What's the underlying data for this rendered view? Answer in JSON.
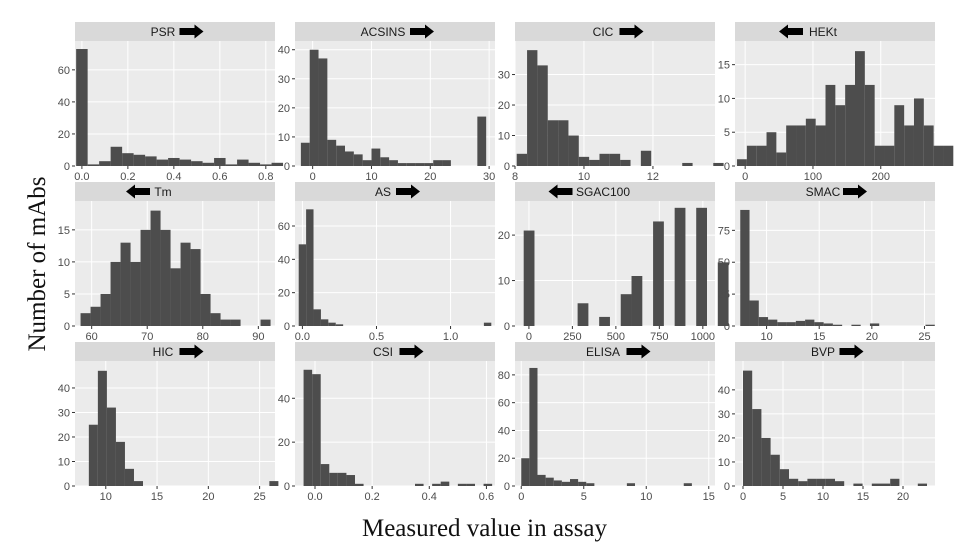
{
  "figure": {
    "ylabel": "Number of mAbs",
    "xlabel": "Measured value in assay"
  },
  "colors": {
    "bar": "#4d4d4d",
    "panel_bg": "#ebebeb",
    "strip_bg": "#d9d9d9",
    "grid": "#ffffff",
    "arrow": "#000000"
  },
  "chart_data": [
    {
      "type": "bar",
      "title": "PSR",
      "arrow": "right",
      "xlim": [
        -0.03,
        0.84
      ],
      "ylim": [
        0,
        78
      ],
      "xticks": [
        0.0,
        0.2,
        0.4,
        0.6,
        0.8
      ],
      "yticks": [
        0,
        20,
        40,
        60
      ],
      "bin_start": -0.025,
      "bin_width": 0.05,
      "values": [
        73,
        1,
        3,
        12,
        8,
        7,
        6,
        4,
        5,
        4,
        3,
        2,
        5,
        1,
        4,
        2,
        1,
        2
      ]
    },
    {
      "type": "bar",
      "title": "ACSINS",
      "arrow": "right",
      "xlim": [
        -3,
        31
      ],
      "ylim": [
        0,
        43
      ],
      "xticks": [
        0,
        10,
        20,
        30
      ],
      "yticks": [
        0,
        10,
        20,
        30,
        40
      ],
      "bin_start": -2,
      "bin_width": 1.5,
      "values": [
        8,
        40,
        37,
        9,
        7,
        5,
        4,
        2,
        6,
        3,
        2,
        1,
        1,
        1,
        1,
        2,
        2,
        0,
        0,
        0,
        17
      ]
    },
    {
      "type": "bar",
      "title": "CIC",
      "arrow": "right",
      "xlim": [
        8,
        13.8
      ],
      "ylim": [
        0,
        41
      ],
      "xticks": [
        8,
        10,
        12
      ],
      "yticks": [
        0,
        10,
        20,
        30
      ],
      "bin_start": 8.05,
      "bin_width": 0.3,
      "values": [
        4,
        38,
        33,
        15,
        15,
        10,
        3,
        2,
        4,
        4,
        2,
        0,
        5,
        0,
        0,
        0,
        1,
        0,
        0,
        1
      ]
    },
    {
      "type": "bar",
      "title": "HEKt",
      "arrow": "left",
      "xlim": [
        -15,
        280
      ],
      "ylim": [
        0,
        18.5
      ],
      "xticks": [
        0,
        100,
        200
      ],
      "yticks": [
        0,
        5,
        10,
        15
      ],
      "bin_start": -12,
      "bin_width": 14.5,
      "values": [
        1,
        3,
        3,
        5,
        2,
        6,
        6,
        7,
        6,
        12,
        9,
        12,
        17,
        12,
        3,
        3,
        9,
        6,
        10,
        6,
        3,
        3
      ]
    },
    {
      "type": "bar",
      "title": "Tm",
      "arrow": "left",
      "xlim": [
        57,
        93
      ],
      "ylim": [
        0,
        19.5
      ],
      "xticks": [
        60,
        70,
        80,
        90
      ],
      "yticks": [
        0,
        5,
        10,
        15
      ],
      "bin_start": 58,
      "bin_width": 1.8,
      "values": [
        2,
        3,
        5,
        10,
        13,
        10,
        15,
        18,
        15,
        9,
        13,
        12,
        5,
        2,
        1,
        1,
        0,
        0,
        1
      ]
    },
    {
      "type": "bar",
      "title": "AS",
      "arrow": "right",
      "xlim": [
        -0.05,
        1.3
      ],
      "ylim": [
        0,
        75
      ],
      "xticks": [
        0.0,
        0.5,
        1.0
      ],
      "yticks": [
        0,
        20,
        40,
        60
      ],
      "bin_start": -0.025,
      "bin_width": 0.05,
      "values": [
        49,
        70,
        10,
        4,
        2,
        1,
        0,
        0,
        0,
        0,
        0,
        0,
        0,
        0,
        0,
        0,
        0,
        0,
        0,
        0,
        0,
        0,
        0,
        0,
        0,
        2
      ]
    },
    {
      "type": "bar",
      "title": "SGAC100",
      "arrow": "left",
      "xlim": [
        -80,
        1070
      ],
      "ylim": [
        0,
        27.5
      ],
      "xticks": [
        0,
        250,
        500,
        750,
        1000
      ],
      "yticks": [
        0,
        10,
        20
      ],
      "bin_start": -30,
      "bin_width": 62,
      "values": [
        21,
        0,
        0,
        0,
        0,
        5,
        0,
        2,
        0,
        7,
        11,
        0,
        23,
        0,
        26,
        0,
        26,
        0,
        14
      ]
    },
    {
      "type": "bar",
      "title": "SMAC",
      "arrow": "right",
      "xlim": [
        7,
        26
      ],
      "ylim": [
        0,
        98
      ],
      "xticks": [
        10,
        15,
        20,
        25
      ],
      "yticks": [
        0,
        25,
        50,
        75
      ],
      "bin_start": 7.5,
      "bin_width": 0.88,
      "values": [
        91,
        20,
        7,
        5,
        3,
        3,
        4,
        5,
        3,
        2,
        1,
        0,
        1,
        0,
        2,
        0,
        0,
        0,
        0,
        0,
        1
      ]
    },
    {
      "type": "bar",
      "title": "HIC",
      "arrow": "right",
      "xlim": [
        7,
        26.5
      ],
      "ylim": [
        0,
        51
      ],
      "xticks": [
        10,
        15,
        20,
        25
      ],
      "yticks": [
        0,
        10,
        20,
        30,
        40
      ],
      "bin_start": 8.35,
      "bin_width": 0.88,
      "values": [
        25,
        47,
        32,
        18,
        7,
        2,
        0,
        0,
        0,
        0,
        0,
        0,
        0,
        0,
        0,
        0,
        0,
        0,
        0,
        0,
        2
      ]
    },
    {
      "type": "bar",
      "title": "CSI",
      "arrow": "right",
      "xlim": [
        -0.07,
        0.63
      ],
      "ylim": [
        0,
        57
      ],
      "xticks": [
        0.0,
        0.2,
        0.4,
        0.6
      ],
      "yticks": [
        0,
        20,
        40
      ],
      "bin_start": -0.04,
      "bin_width": 0.03,
      "values": [
        53,
        51,
        10,
        6,
        6,
        5,
        1,
        0,
        0,
        0,
        0,
        0,
        0,
        1,
        0,
        1,
        2,
        0,
        1,
        1,
        0,
        1
      ]
    },
    {
      "type": "bar",
      "title": "ELISA",
      "arrow": "right",
      "xlim": [
        -0.5,
        15.5
      ],
      "ylim": [
        0,
        90
      ],
      "xticks": [
        0,
        5,
        10,
        15
      ],
      "yticks": [
        0,
        20,
        40,
        60,
        80
      ],
      "bin_start": 0,
      "bin_width": 0.65,
      "values": [
        20,
        85,
        8,
        6,
        4,
        3,
        5,
        3,
        2,
        0,
        0,
        0,
        0,
        2,
        0,
        0,
        0,
        0,
        0,
        0,
        2,
        0,
        0
      ]
    },
    {
      "type": "bar",
      "title": "BVP",
      "arrow": "right",
      "xlim": [
        -1,
        24
      ],
      "ylim": [
        0,
        52
      ],
      "xticks": [
        0,
        5,
        10,
        15,
        20
      ],
      "yticks": [
        0,
        10,
        20,
        30,
        40
      ],
      "bin_start": 0,
      "bin_width": 1.15,
      "values": [
        48,
        32,
        20,
        13,
        7,
        3,
        2,
        3,
        3,
        3,
        2,
        0,
        1,
        0,
        1,
        1,
        3,
        0,
        0,
        1
      ]
    }
  ]
}
